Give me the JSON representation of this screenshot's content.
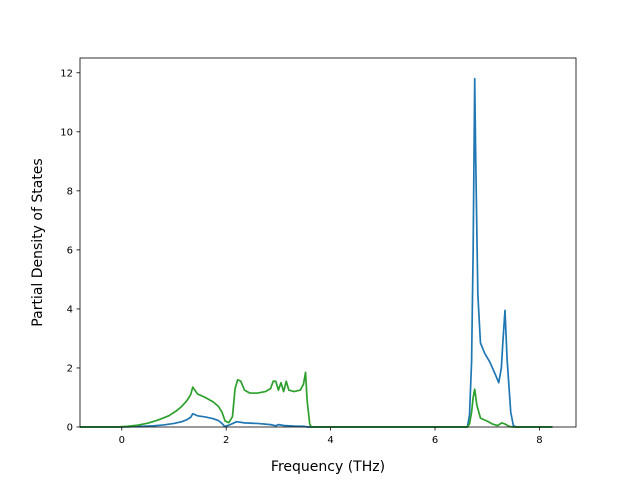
{
  "chart_data": {
    "type": "line",
    "title": "",
    "xlabel": "Frequency (THz)",
    "ylabel": "Partial Density of States",
    "xlim": [
      -0.8,
      8.7
    ],
    "ylim": [
      0,
      12.5
    ],
    "xticks": [
      0,
      2,
      4,
      6,
      8
    ],
    "yticks": [
      0,
      2,
      4,
      6,
      8,
      10,
      12
    ],
    "grid": false,
    "legend": "none",
    "series": [
      {
        "color": "#1f77b4",
        "points": [
          [
            -0.8,
            0
          ],
          [
            0.0,
            0
          ],
          [
            0.2,
            0.01
          ],
          [
            0.4,
            0.02
          ],
          [
            0.6,
            0.04
          ],
          [
            0.8,
            0.07
          ],
          [
            1.0,
            0.12
          ],
          [
            1.15,
            0.18
          ],
          [
            1.25,
            0.25
          ],
          [
            1.32,
            0.33
          ],
          [
            1.36,
            0.45
          ],
          [
            1.45,
            0.38
          ],
          [
            1.6,
            0.34
          ],
          [
            1.75,
            0.28
          ],
          [
            1.85,
            0.22
          ],
          [
            1.92,
            0.12
          ],
          [
            1.97,
            0.02
          ],
          [
            2.05,
            0.06
          ],
          [
            2.2,
            0.18
          ],
          [
            2.35,
            0.14
          ],
          [
            2.6,
            0.12
          ],
          [
            2.85,
            0.08
          ],
          [
            2.95,
            0.04
          ],
          [
            3.0,
            0.08
          ],
          [
            3.1,
            0.05
          ],
          [
            3.3,
            0.03
          ],
          [
            3.5,
            0.02
          ],
          [
            3.56,
            0
          ],
          [
            4.0,
            0
          ],
          [
            5.0,
            0
          ],
          [
            6.0,
            0
          ],
          [
            6.62,
            0
          ],
          [
            6.66,
            0.4
          ],
          [
            6.7,
            2.2
          ],
          [
            6.73,
            6.0
          ],
          [
            6.76,
            11.8
          ],
          [
            6.78,
            9.0
          ],
          [
            6.82,
            4.5
          ],
          [
            6.87,
            2.85
          ],
          [
            6.95,
            2.5
          ],
          [
            7.05,
            2.2
          ],
          [
            7.15,
            1.8
          ],
          [
            7.22,
            1.5
          ],
          [
            7.27,
            2.0
          ],
          [
            7.3,
            2.9
          ],
          [
            7.34,
            3.95
          ],
          [
            7.38,
            2.3
          ],
          [
            7.45,
            0.5
          ],
          [
            7.5,
            0.05
          ],
          [
            7.55,
            0
          ],
          [
            8.25,
            0
          ]
        ]
      },
      {
        "color": "#2ca02c",
        "points": [
          [
            -0.8,
            0
          ],
          [
            -0.1,
            0
          ],
          [
            0.1,
            0.02
          ],
          [
            0.3,
            0.06
          ],
          [
            0.5,
            0.13
          ],
          [
            0.7,
            0.24
          ],
          [
            0.9,
            0.38
          ],
          [
            1.05,
            0.55
          ],
          [
            1.15,
            0.7
          ],
          [
            1.25,
            0.9
          ],
          [
            1.32,
            1.1
          ],
          [
            1.36,
            1.35
          ],
          [
            1.45,
            1.12
          ],
          [
            1.6,
            1.0
          ],
          [
            1.75,
            0.85
          ],
          [
            1.85,
            0.7
          ],
          [
            1.92,
            0.5
          ],
          [
            1.98,
            0.2
          ],
          [
            2.05,
            0.15
          ],
          [
            2.12,
            0.35
          ],
          [
            2.17,
            1.3
          ],
          [
            2.22,
            1.6
          ],
          [
            2.28,
            1.55
          ],
          [
            2.35,
            1.25
          ],
          [
            2.45,
            1.15
          ],
          [
            2.6,
            1.15
          ],
          [
            2.75,
            1.2
          ],
          [
            2.85,
            1.3
          ],
          [
            2.9,
            1.55
          ],
          [
            2.95,
            1.55
          ],
          [
            3.0,
            1.25
          ],
          [
            3.05,
            1.5
          ],
          [
            3.1,
            1.2
          ],
          [
            3.15,
            1.55
          ],
          [
            3.2,
            1.25
          ],
          [
            3.3,
            1.2
          ],
          [
            3.42,
            1.25
          ],
          [
            3.48,
            1.45
          ],
          [
            3.52,
            1.85
          ],
          [
            3.55,
            0.9
          ],
          [
            3.6,
            0.1
          ],
          [
            3.63,
            0
          ],
          [
            5.0,
            0
          ],
          [
            6.62,
            0
          ],
          [
            6.66,
            0.1
          ],
          [
            6.7,
            0.5
          ],
          [
            6.73,
            1.0
          ],
          [
            6.76,
            1.28
          ],
          [
            6.8,
            0.75
          ],
          [
            6.87,
            0.3
          ],
          [
            7.0,
            0.2
          ],
          [
            7.1,
            0.1
          ],
          [
            7.2,
            0.05
          ],
          [
            7.28,
            0.14
          ],
          [
            7.34,
            0.1
          ],
          [
            7.42,
            0.02
          ],
          [
            7.5,
            0
          ],
          [
            8.25,
            0
          ]
        ]
      }
    ]
  }
}
